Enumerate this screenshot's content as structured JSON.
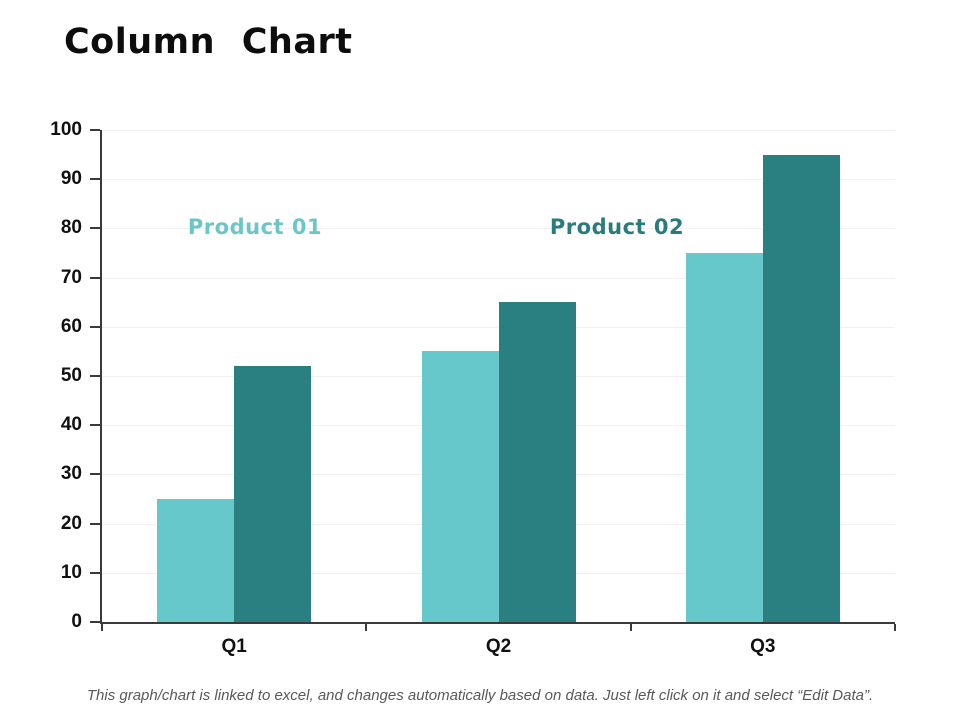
{
  "page": {
    "title": "Column Chart",
    "footer": "This graph/chart is linked to excel, and changes automatically based on data. Just left click on it and select “Edit Data”."
  },
  "chart_data": {
    "type": "bar",
    "title": "Column Chart",
    "xlabel": "",
    "ylabel": "",
    "categories": [
      "Q1",
      "Q2",
      "Q3"
    ],
    "series": [
      {
        "name": "Product 01",
        "color": "#66C8CB",
        "values": [
          25,
          55,
          75
        ]
      },
      {
        "name": "Product 02",
        "color": "#2A7F80",
        "values": [
          52,
          65,
          95
        ]
      }
    ],
    "ylim": [
      0,
      100
    ],
    "y_ticks": [
      0,
      10,
      20,
      30,
      40,
      50,
      60,
      70,
      80,
      90,
      100
    ],
    "grid": true,
    "legend_position": "in-plot annotations",
    "annotations": [
      {
        "text": "Product 01",
        "color": "#6CC6C9",
        "x": 255,
        "y": 229
      },
      {
        "text": "Product 02",
        "color": "#2A7B7D",
        "x": 617,
        "y": 229
      }
    ],
    "colors": {
      "axis": "#3a3a3a",
      "gridline": "#f0f0f0",
      "tick_label": "#111111",
      "footer_text": "#595959"
    }
  }
}
